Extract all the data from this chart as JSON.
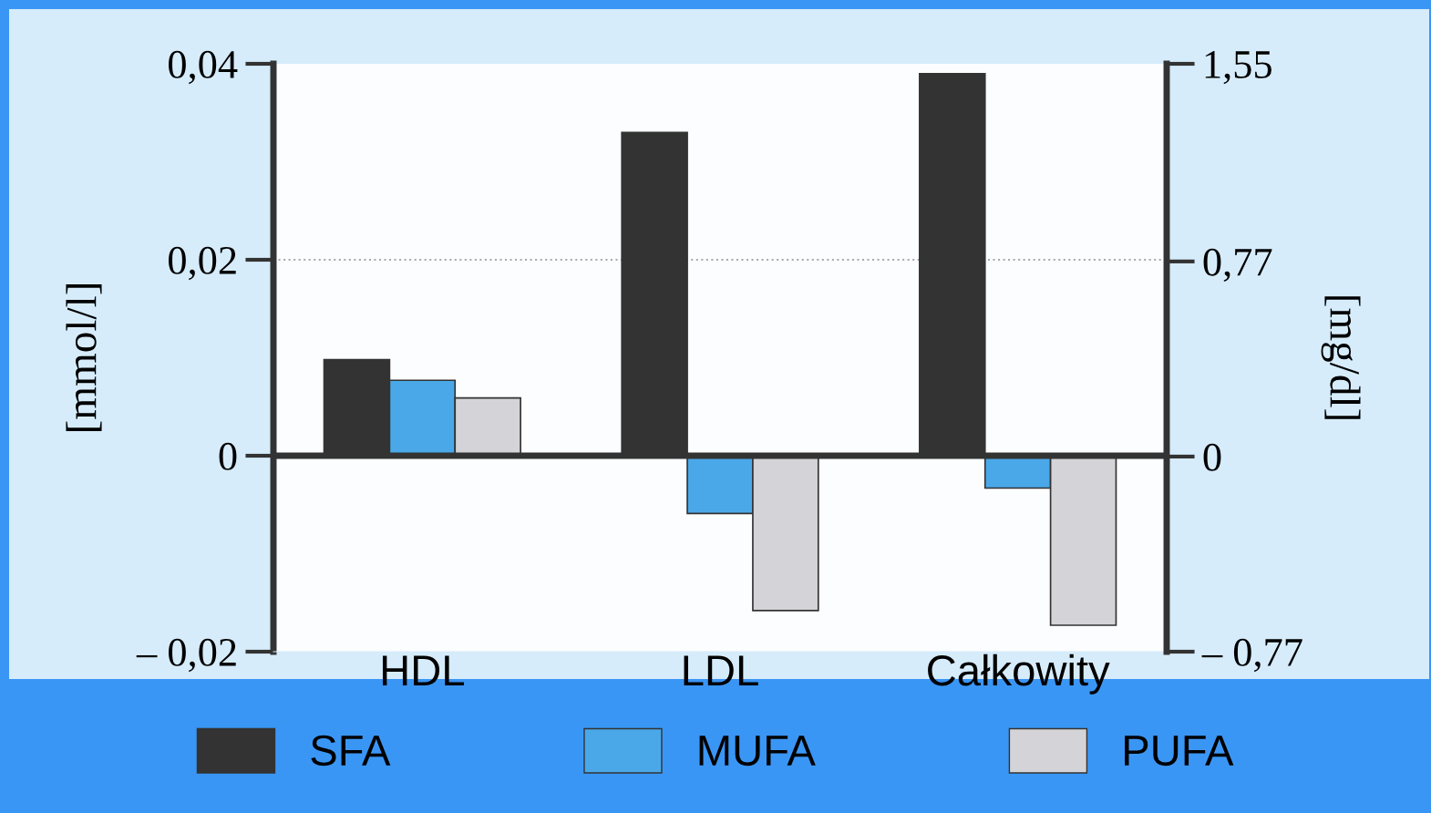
{
  "chart_data": {
    "type": "bar",
    "categories": [
      "HDL",
      "LDL",
      "Całkowity"
    ],
    "series": [
      {
        "name": "SFA",
        "color": "#333333",
        "values": [
          0.0098,
          0.033,
          0.039
        ]
      },
      {
        "name": "MUFA",
        "color": "#4aa8e8",
        "values": [
          0.0077,
          -0.0059,
          -0.0033
        ]
      },
      {
        "name": "PUFA",
        "color": "#d4d4d8",
        "values": [
          0.0059,
          -0.0158,
          -0.0173
        ]
      }
    ],
    "ylabel": "[mmol/l]",
    "y2label": "[mg/dl]",
    "ylim": [
      -0.02,
      0.04
    ],
    "yticks": [
      {
        "value": -0.02,
        "label": "– 0,02"
      },
      {
        "value": 0,
        "label": "0"
      },
      {
        "value": 0.02,
        "label": "0,02"
      },
      {
        "value": 0.04,
        "label": "0,04"
      }
    ],
    "y2lim": [
      -0.77,
      1.55
    ],
    "y2ticks": [
      {
        "value": -0.77,
        "label": "– 0,77"
      },
      {
        "value": 0,
        "label": "0"
      },
      {
        "value": 0.77,
        "label": "0,77"
      },
      {
        "value": 1.55,
        "label": "1,55"
      }
    ],
    "ref_lines": [
      {
        "axis": "y",
        "value": 0,
        "color": "#333333"
      },
      {
        "axis": "y",
        "value": 0.02,
        "color": "#aaaaaa",
        "line_style": "dotted"
      }
    ],
    "legend": "bottom"
  }
}
